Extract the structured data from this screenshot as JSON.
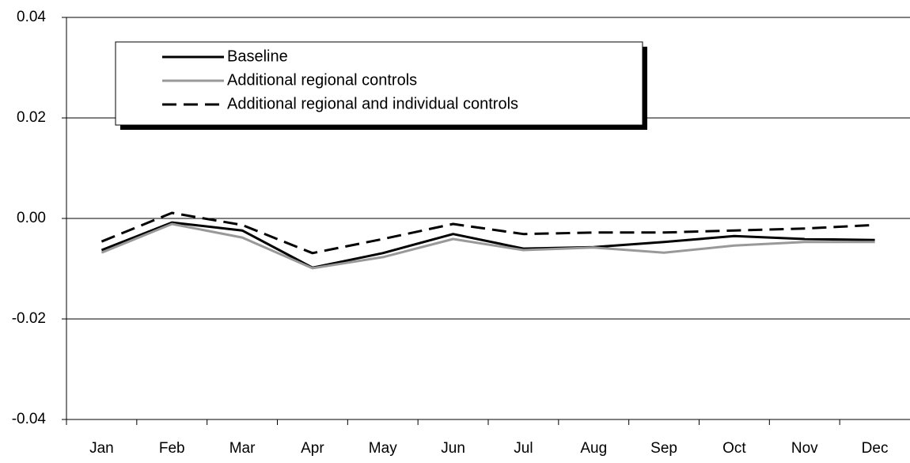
{
  "chart_data": {
    "type": "line",
    "categories": [
      "Jan",
      "Feb",
      "Mar",
      "Apr",
      "May",
      "Jun",
      "Jul",
      "Aug",
      "Sep",
      "Oct",
      "Nov",
      "Dec"
    ],
    "series": [
      {
        "name": "Baseline",
        "color": "#000000",
        "style": "solid",
        "values": [
          -0.0063,
          -0.0008,
          -0.0024,
          -0.0098,
          -0.0069,
          -0.0031,
          -0.006,
          -0.0057,
          -0.0047,
          -0.0035,
          -0.0041,
          -0.0043
        ]
      },
      {
        "name": "Additional regional controls",
        "color": "#999999",
        "style": "solid",
        "values": [
          -0.0068,
          -0.0011,
          -0.0038,
          -0.0099,
          -0.0077,
          -0.0041,
          -0.0063,
          -0.0058,
          -0.0068,
          -0.0054,
          -0.0047,
          -0.0047
        ]
      },
      {
        "name": "Additional regional and individual controls",
        "color": "#000000",
        "style": "dashed",
        "values": [
          -0.0046,
          0.0011,
          -0.0013,
          -0.0069,
          -0.0041,
          -0.0011,
          -0.0031,
          -0.0028,
          -0.0028,
          -0.0024,
          -0.002,
          -0.0013
        ]
      }
    ],
    "ylim": [
      -0.04,
      0.04
    ],
    "yticks": [
      -0.04,
      -0.02,
      {
        "value": 0,
        "label": "0.00"
      },
      0.02,
      0.04
    ],
    "grid": true,
    "legend": "upper left"
  }
}
